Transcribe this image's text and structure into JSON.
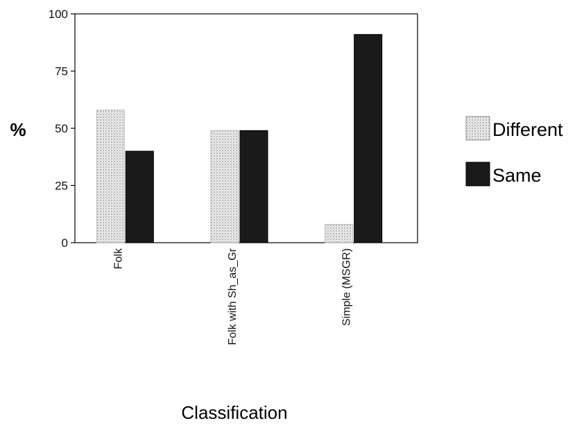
{
  "chart_data": {
    "type": "bar",
    "categories": [
      "Folk",
      "Folk with Sh_as_Gr",
      "Simple (MSGR)"
    ],
    "series": [
      {
        "name": "Different",
        "values": [
          58,
          49,
          8
        ],
        "color": "#e6e6e6",
        "pattern": "dotted"
      },
      {
        "name": "Same",
        "values": [
          40,
          49,
          91
        ],
        "color": "#1a1a1a",
        "pattern": "solid"
      }
    ],
    "xlabel": "Classification",
    "ylabel": "%",
    "ylim": [
      0,
      100
    ],
    "yticks": [
      "0",
      "25",
      "50",
      "75",
      "100"
    ],
    "grid": false,
    "legend_position": "right"
  }
}
